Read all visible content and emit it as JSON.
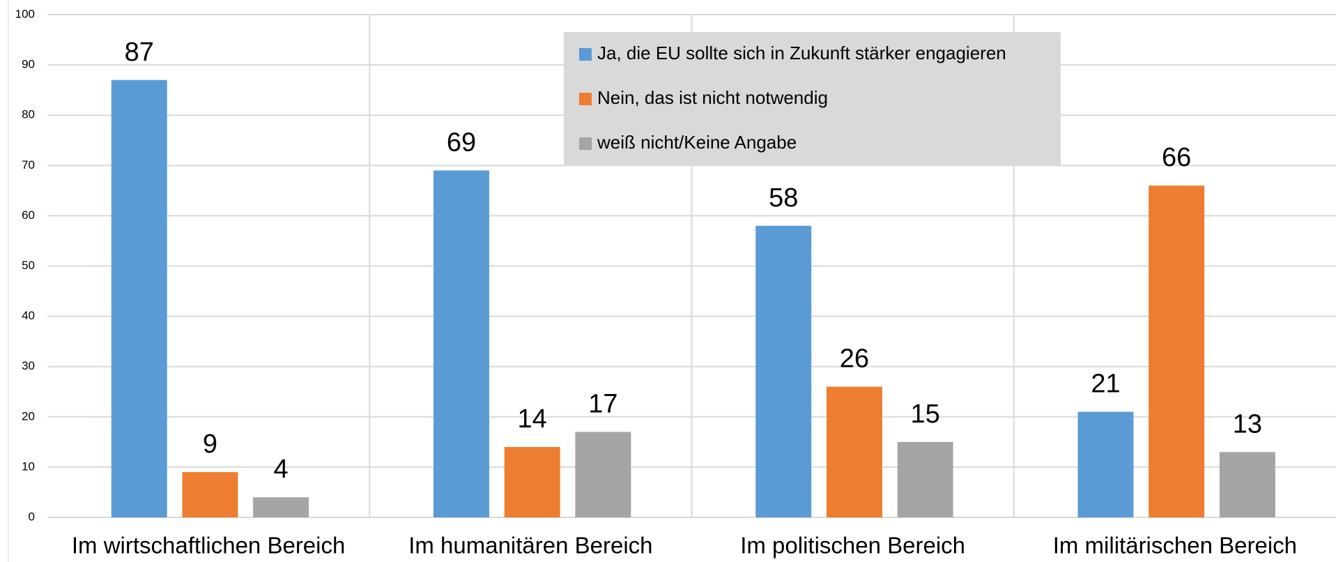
{
  "chart_data": {
    "type": "bar",
    "categories": [
      "Im wirtschaftlichen Bereich",
      "Im humanitären Bereich",
      "Im politischen Bereich",
      "Im militärischen Bereich"
    ],
    "series": [
      {
        "name": "Ja, die EU sollte sich in Zukunft stärker engagieren",
        "color": "#5b9bd5",
        "values": [
          87,
          69,
          58,
          21
        ]
      },
      {
        "name": "Nein, das ist nicht notwendig",
        "color": "#ed7d31",
        "values": [
          9,
          14,
          26,
          66
        ]
      },
      {
        "name": "weiß nicht/Keine Angabe",
        "color": "#a5a5a5",
        "values": [
          4,
          17,
          15,
          13
        ]
      }
    ],
    "ylim": [
      0,
      100
    ],
    "yticks": [
      0,
      10,
      20,
      30,
      40,
      50,
      60,
      70,
      80,
      90,
      100
    ],
    "grid": true,
    "legend": "top-center"
  }
}
